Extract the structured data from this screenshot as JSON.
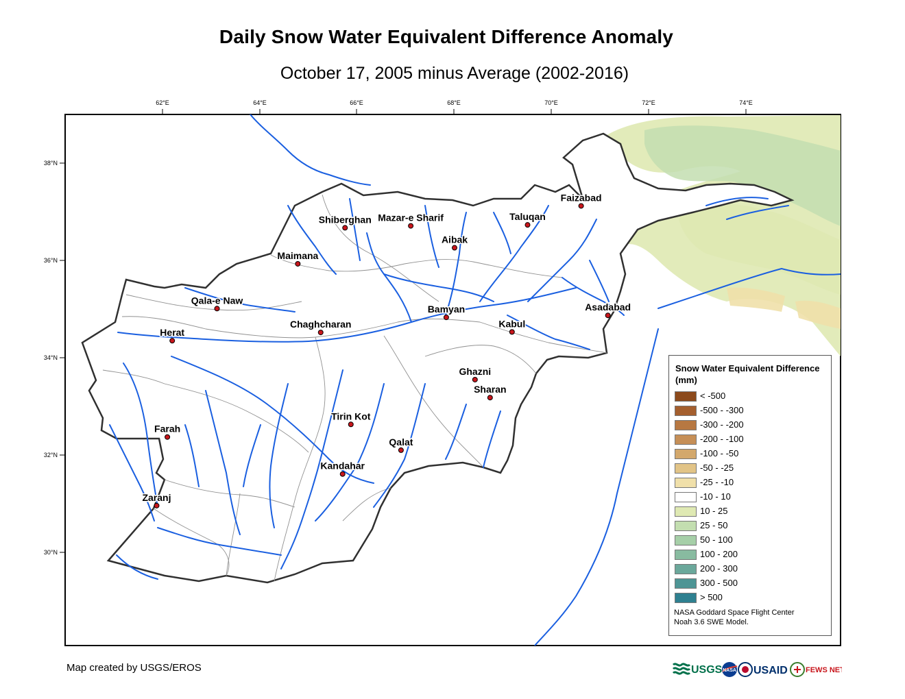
{
  "title": "Daily Snow Water Equivalent Difference Anomaly",
  "subtitle": "October 17, 2005 minus Average (2002-2016)",
  "graticule": {
    "longitudes": [
      "62°E",
      "64°E",
      "66°E",
      "68°E",
      "70°E",
      "72°E",
      "74°E"
    ],
    "latitudes": [
      "38°N",
      "36°N",
      "34°N",
      "32°N",
      "30°N"
    ]
  },
  "cities": [
    {
      "name": "Faizabad",
      "lon": 70.6,
      "lat": 37.12
    },
    {
      "name": "Shiberghan",
      "lon": 65.75,
      "lat": 36.67
    },
    {
      "name": "Mazar-e Sharif",
      "lon": 67.1,
      "lat": 36.71
    },
    {
      "name": "Taluqan",
      "lon": 69.5,
      "lat": 36.73
    },
    {
      "name": "Aibak",
      "lon": 68.0,
      "lat": 36.26
    },
    {
      "name": "Maimana",
      "lon": 64.78,
      "lat": 35.93
    },
    {
      "name": "Qala-e Naw",
      "lon": 63.12,
      "lat": 35.01
    },
    {
      "name": "Asadabad",
      "lon": 71.15,
      "lat": 34.87
    },
    {
      "name": "Bamyan",
      "lon": 67.83,
      "lat": 34.83
    },
    {
      "name": "Chaghcharan",
      "lon": 65.25,
      "lat": 34.52
    },
    {
      "name": "Kabul",
      "lon": 69.18,
      "lat": 34.53
    },
    {
      "name": "Herat",
      "lon": 62.2,
      "lat": 34.35
    },
    {
      "name": "Ghazni",
      "lon": 68.42,
      "lat": 33.55
    },
    {
      "name": "Sharan",
      "lon": 68.73,
      "lat": 33.18
    },
    {
      "name": "Tirin Kot",
      "lon": 65.87,
      "lat": 32.63
    },
    {
      "name": "Farah",
      "lon": 62.1,
      "lat": 32.37
    },
    {
      "name": "Qalat",
      "lon": 66.9,
      "lat": 32.1
    },
    {
      "name": "Kandahar",
      "lon": 65.7,
      "lat": 31.61
    },
    {
      "name": "Zaranj",
      "lon": 61.88,
      "lat": 30.96
    }
  ],
  "legend": {
    "title": "Snow Water Equivalent Difference (mm)",
    "items": [
      {
        "label": "< -500",
        "color": "#8c4a1c"
      },
      {
        "label": "-500 - -300",
        "color": "#a45f2e"
      },
      {
        "label": "-300 - -200",
        "color": "#b77842"
      },
      {
        "label": "-200 - -100",
        "color": "#c68f57"
      },
      {
        "label": "-100 - -50",
        "color": "#d3a86c"
      },
      {
        "label": "-50 - -25",
        "color": "#e2c487"
      },
      {
        "label": "-25 - -10",
        "color": "#f0e0aa"
      },
      {
        "label": "-10 - 10",
        "color": "#ffffff"
      },
      {
        "label": "10 - 25",
        "color": "#dfe9b3"
      },
      {
        "label": "25 - 50",
        "color": "#c3deb0"
      },
      {
        "label": "50 - 100",
        "color": "#a6cfa8"
      },
      {
        "label": "100 - 200",
        "color": "#88bba0"
      },
      {
        "label": "200 - 300",
        "color": "#6ba89b"
      },
      {
        "label": "300 - 500",
        "color": "#4e9595"
      },
      {
        "label": "> 500",
        "color": "#2e8090"
      }
    ],
    "source_line1": "NASA Goddard Space Flight Center",
    "source_line2": "Noah 3.6 SWE Model."
  },
  "credit": "Map created by USGS/EROS",
  "logos": {
    "usgs": "USGS",
    "nasa": "NASA",
    "usaid": "USAID",
    "fewsnet": "FEWS NET"
  },
  "colors": {
    "river": "#1a5fe0",
    "border": "#303030",
    "basin": "#909090",
    "city_marker": "#c8161c",
    "snow_light": "#dfe9b3",
    "snow_mid": "#c3deb0",
    "dry": "#f0e0aa"
  }
}
